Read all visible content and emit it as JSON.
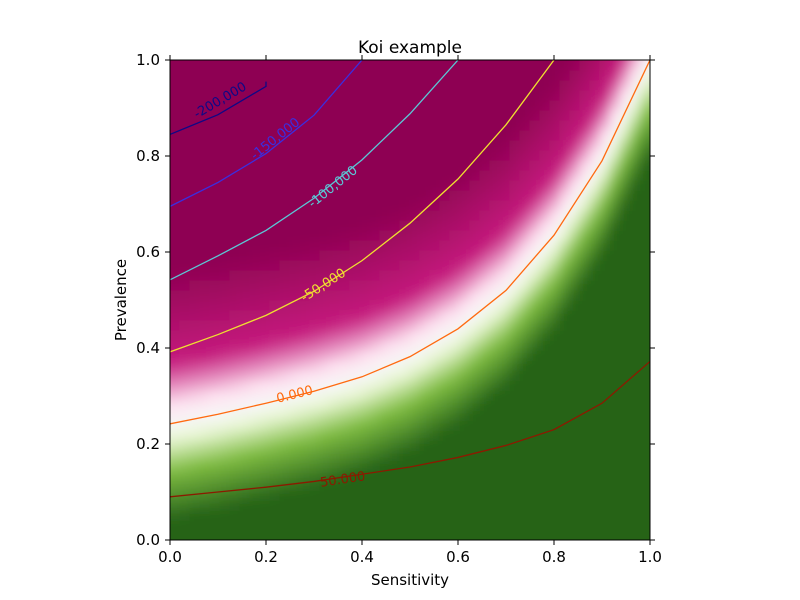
{
  "chart_data": {
    "type": "heatmap",
    "title": "Koi example",
    "xlabel": "Sensitivity",
    "ylabel": "Prevalence",
    "xlim": [
      0.0,
      1.0
    ],
    "ylim": [
      0.0,
      1.0
    ],
    "xticks": [
      0.0,
      0.2,
      0.4,
      0.6,
      0.8,
      1.0
    ],
    "yticks": [
      0.0,
      0.2,
      0.4,
      0.6,
      0.8,
      1.0
    ],
    "xtick_labels": [
      "0.0",
      "0.2",
      "0.4",
      "0.6",
      "0.8",
      "1.0"
    ],
    "ytick_labels": [
      "0.0",
      "0.2",
      "0.4",
      "0.6",
      "0.8",
      "1.0"
    ],
    "grid": false,
    "colormap": "PiYG",
    "colormap_colors": {
      "low": "#8e0152",
      "mid_low": "#c51b7d",
      "mid_light_pink": "#fde0ef",
      "center": "#f7f7f7",
      "mid_light_green": "#e6f5d0",
      "mid_high": "#7fbc41",
      "high": "#276419"
    },
    "contours": [
      {
        "level": -200000,
        "label": "-200,000",
        "color": "#0d0887",
        "points": [
          [
            0.0,
            0.845
          ],
          [
            0.1,
            0.886
          ],
          [
            0.2,
            0.945
          ],
          [
            0.2,
            0.955
          ]
        ],
        "label_at": [
          0.105,
          0.915
        ]
      },
      {
        "level": -150000,
        "label": "-150,000",
        "color": "#3a2ee0",
        "points": [
          [
            0.0,
            0.695
          ],
          [
            0.1,
            0.745
          ],
          [
            0.2,
            0.805
          ],
          [
            0.3,
            0.885
          ],
          [
            0.4,
            1.0
          ]
        ],
        "label_at": [
          0.22,
          0.835
        ]
      },
      {
        "level": -100000,
        "label": "-100,000",
        "color": "#5bc8d6",
        "points": [
          [
            0.0,
            0.542
          ],
          [
            0.1,
            0.592
          ],
          [
            0.2,
            0.645
          ],
          [
            0.3,
            0.712
          ],
          [
            0.4,
            0.792
          ],
          [
            0.5,
            0.888
          ],
          [
            0.6,
            1.0
          ]
        ],
        "label_at": [
          0.34,
          0.735
        ]
      },
      {
        "level": -50000,
        "label": "-50,000",
        "color": "#f0e030",
        "points": [
          [
            0.0,
            0.392
          ],
          [
            0.1,
            0.428
          ],
          [
            0.2,
            0.468
          ],
          [
            0.3,
            0.518
          ],
          [
            0.4,
            0.582
          ],
          [
            0.5,
            0.66
          ],
          [
            0.6,
            0.752
          ],
          [
            0.7,
            0.865
          ],
          [
            0.8,
            1.0
          ]
        ],
        "label_at": [
          0.32,
          0.53
        ]
      },
      {
        "level": 0,
        "label": "0.000",
        "color": "#ff6a10",
        "points": [
          [
            0.0,
            0.242
          ],
          [
            0.1,
            0.262
          ],
          [
            0.2,
            0.285
          ],
          [
            0.3,
            0.31
          ],
          [
            0.4,
            0.34
          ],
          [
            0.5,
            0.382
          ],
          [
            0.6,
            0.44
          ],
          [
            0.7,
            0.52
          ],
          [
            0.8,
            0.635
          ],
          [
            0.9,
            0.79
          ],
          [
            1.0,
            1.0
          ]
        ],
        "label_at": [
          0.26,
          0.302
        ]
      },
      {
        "level": 50000,
        "label": "50.000",
        "color": "#8b1a00",
        "points": [
          [
            0.0,
            0.09
          ],
          [
            0.1,
            0.1
          ],
          [
            0.2,
            0.11
          ],
          [
            0.3,
            0.122
          ],
          [
            0.4,
            0.137
          ],
          [
            0.5,
            0.152
          ],
          [
            0.6,
            0.172
          ],
          [
            0.7,
            0.197
          ],
          [
            0.8,
            0.23
          ],
          [
            0.9,
            0.285
          ],
          [
            1.0,
            0.372
          ]
        ],
        "label_at": [
          0.36,
          0.125
        ]
      }
    ]
  }
}
